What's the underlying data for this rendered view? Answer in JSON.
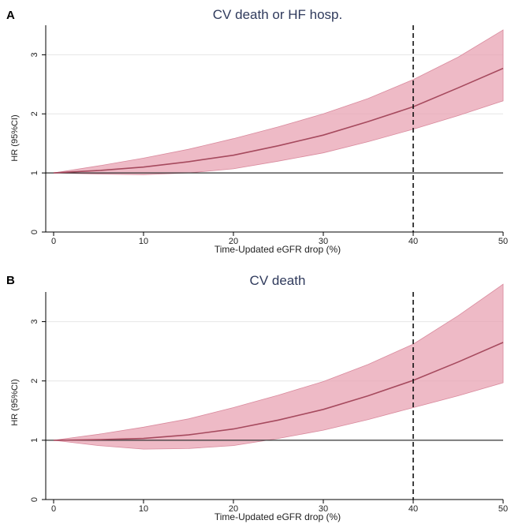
{
  "colors": {
    "band_fill": "#e8a3b3",
    "band_stroke": "#d98a9d",
    "line": "#a64a5e",
    "reference": "#333333",
    "title": "#2f3a5c",
    "grid": "#e6e6e6"
  },
  "chart_data": [
    {
      "panel": "A",
      "type": "line",
      "title": "CV death or HF hosp.",
      "xlabel": "Time-Updated eGFR drop (%)",
      "ylabel": "HR (95%CI)",
      "xlim": [
        0,
        50
      ],
      "ylim": [
        0,
        3.5
      ],
      "xticks": [
        0,
        10,
        20,
        30,
        40,
        50
      ],
      "yticks": [
        0,
        1,
        2,
        3
      ],
      "reference_line_y": 1,
      "vertical_dashed_x": 40,
      "grid": true,
      "series": [
        {
          "x": [
            0,
            5,
            10,
            15,
            20,
            25,
            30,
            35,
            40,
            45,
            50
          ],
          "y": [
            1.0,
            1.04,
            1.1,
            1.19,
            1.3,
            1.46,
            1.64,
            1.87,
            2.12,
            2.44,
            2.77
          ],
          "lower": [
            1.0,
            0.98,
            0.97,
            1.0,
            1.07,
            1.2,
            1.34,
            1.53,
            1.74,
            1.97,
            2.22
          ],
          "upper": [
            1.0,
            1.12,
            1.25,
            1.4,
            1.58,
            1.78,
            2.0,
            2.26,
            2.58,
            2.96,
            3.42
          ]
        }
      ]
    },
    {
      "panel": "B",
      "type": "line",
      "title": "CV death",
      "xlabel": "Time-Updated eGFR drop (%)",
      "ylabel": "HR (95%CI)",
      "xlim": [
        0,
        50
      ],
      "ylim": [
        0,
        3.5
      ],
      "xticks": [
        0,
        10,
        20,
        30,
        40,
        50
      ],
      "yticks": [
        0,
        1,
        2,
        3
      ],
      "reference_line_y": 1,
      "vertical_dashed_x": 40,
      "grid": true,
      "series": [
        {
          "x": [
            0,
            5,
            10,
            15,
            20,
            25,
            30,
            35,
            40,
            45,
            50
          ],
          "y": [
            1.0,
            1.01,
            1.03,
            1.09,
            1.19,
            1.34,
            1.52,
            1.75,
            2.01,
            2.32,
            2.65
          ],
          "lower": [
            1.0,
            0.91,
            0.85,
            0.86,
            0.91,
            1.03,
            1.17,
            1.35,
            1.55,
            1.75,
            1.97
          ],
          "upper": [
            1.0,
            1.1,
            1.22,
            1.36,
            1.55,
            1.76,
            1.99,
            2.28,
            2.62,
            3.1,
            3.63
          ]
        }
      ]
    }
  ]
}
